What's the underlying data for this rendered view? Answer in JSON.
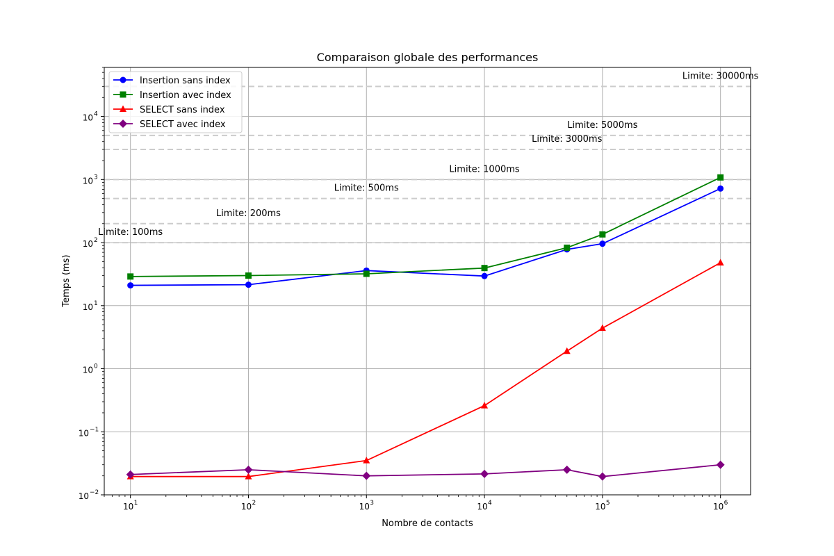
{
  "chart_data": {
    "type": "line",
    "title": "Comparaison globale des performances",
    "xlabel": "Nombre de contacts",
    "ylabel": "Temps (ms)",
    "xscale": "log",
    "yscale": "log",
    "xlim": [
      6,
      1800000
    ],
    "ylim": [
      0.01,
      60000
    ],
    "grid": true,
    "legend_position": "top-left",
    "x_ticks": [
      {
        "value": 10,
        "base": "10",
        "exp": "1"
      },
      {
        "value": 100,
        "base": "10",
        "exp": "2"
      },
      {
        "value": 1000,
        "base": "10",
        "exp": "3"
      },
      {
        "value": 10000,
        "base": "10",
        "exp": "4"
      },
      {
        "value": 100000,
        "base": "10",
        "exp": "5"
      },
      {
        "value": 1000000,
        "base": "10",
        "exp": "6"
      }
    ],
    "y_ticks": [
      {
        "value": 0.01,
        "base": "10",
        "exp": "−2"
      },
      {
        "value": 0.1,
        "base": "10",
        "exp": "−1"
      },
      {
        "value": 1,
        "base": "10",
        "exp": "0"
      },
      {
        "value": 10,
        "base": "10",
        "exp": "1"
      },
      {
        "value": 100,
        "base": "10",
        "exp": "2"
      },
      {
        "value": 1000,
        "base": "10",
        "exp": "3"
      },
      {
        "value": 10000,
        "base": "10",
        "exp": "4"
      }
    ],
    "series": [
      {
        "name": "Insertion sans index",
        "color": "#0000ff",
        "marker": "circle",
        "x": [
          10,
          100,
          1000,
          10000,
          50000,
          100000,
          1000000
        ],
        "y": [
          21,
          21.5,
          36,
          29.5,
          78,
          96,
          720
        ]
      },
      {
        "name": "Insertion avec index",
        "color": "#008000",
        "marker": "square",
        "x": [
          10,
          100,
          1000,
          10000,
          50000,
          100000,
          1000000
        ],
        "y": [
          29,
          30,
          32,
          39.5,
          83,
          135,
          1080
        ]
      },
      {
        "name": "SELECT sans index",
        "color": "#ff0000",
        "marker": "triangle",
        "x": [
          10,
          100,
          1000,
          10000,
          50000,
          100000,
          1000000
        ],
        "y": [
          0.0195,
          0.0195,
          0.035,
          0.26,
          1.9,
          4.4,
          48
        ]
      },
      {
        "name": "SELECT avec index",
        "color": "#800080",
        "marker": "diamond",
        "x": [
          10,
          100,
          1000,
          10000,
          50000,
          100000,
          1000000
        ],
        "y": [
          0.021,
          0.025,
          0.02,
          0.0215,
          0.025,
          0.0195,
          0.03
        ]
      }
    ],
    "limit_lines": [
      {
        "value": 100,
        "label": "Limite: 100ms",
        "label_x": 10
      },
      {
        "value": 200,
        "label": "Limite: 200ms",
        "label_x": 100
      },
      {
        "value": 500,
        "label": "Limite: 500ms",
        "label_x": 1000
      },
      {
        "value": 1000,
        "label": "Limite: 1000ms",
        "label_x": 10000
      },
      {
        "value": 3000,
        "label": "Limite: 3000ms",
        "label_x": 50000
      },
      {
        "value": 5000,
        "label": "Limite: 5000ms",
        "label_x": 100000
      },
      {
        "value": 30000,
        "label": "Limite: 30000ms",
        "label_x": 1000000
      }
    ],
    "colors": {
      "grid": "#b0b0b0",
      "limit_line": "#cccccc",
      "axis": "#000000"
    }
  }
}
